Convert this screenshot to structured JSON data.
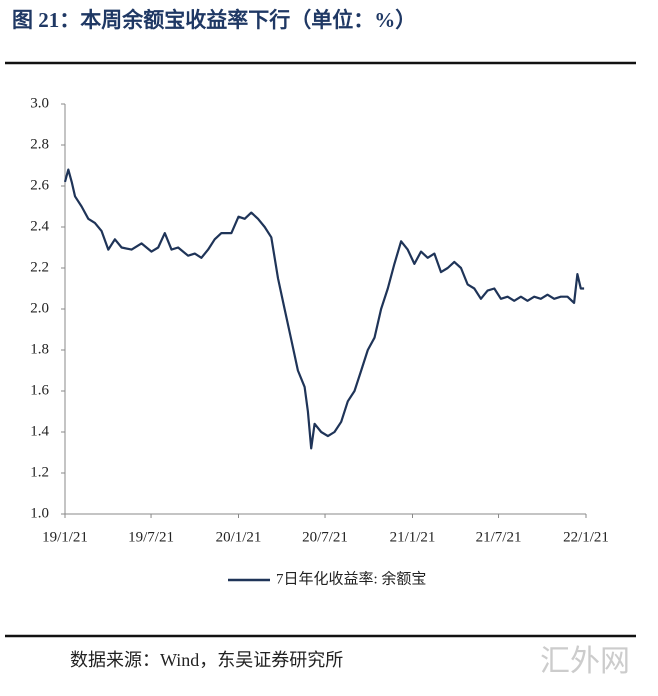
{
  "chart_data": {
    "type": "line",
    "title": "图 21：本周余额宝收益率下行（单位：%）",
    "source": "数据来源：Wind，东吴证券研究所",
    "watermark": "汇外网",
    "x": [
      "2019-01-21",
      "2019-01-28",
      "2019-02-04",
      "2019-02-11",
      "2019-02-25",
      "2019-03-11",
      "2019-03-25",
      "2019-04-08",
      "2019-04-22",
      "2019-05-06",
      "2019-05-20",
      "2019-06-10",
      "2019-07-01",
      "2019-07-22",
      "2019-08-05",
      "2019-08-19",
      "2019-09-02",
      "2019-09-16",
      "2019-10-07",
      "2019-10-21",
      "2019-11-04",
      "2019-11-18",
      "2019-12-02",
      "2019-12-16",
      "2020-01-06",
      "2020-01-21",
      "2020-02-03",
      "2020-02-17",
      "2020-03-02",
      "2020-03-16",
      "2020-03-30",
      "2020-04-13",
      "2020-04-27",
      "2020-05-11",
      "2020-05-25",
      "2020-06-08",
      "2020-06-15",
      "2020-06-22",
      "2020-06-29",
      "2020-07-13",
      "2020-07-27",
      "2020-08-10",
      "2020-08-24",
      "2020-09-07",
      "2020-09-21",
      "2020-10-05",
      "2020-10-19",
      "2020-11-02",
      "2020-11-16",
      "2020-11-30",
      "2020-12-14",
      "2020-12-28",
      "2021-01-11",
      "2021-01-25",
      "2021-02-08",
      "2021-02-22",
      "2021-03-08",
      "2021-03-22",
      "2021-04-05",
      "2021-04-19",
      "2021-05-03",
      "2021-05-17",
      "2021-05-31",
      "2021-06-14",
      "2021-06-28",
      "2021-07-12",
      "2021-07-26",
      "2021-08-09",
      "2021-08-23",
      "2021-09-06",
      "2021-09-20",
      "2021-10-04",
      "2021-10-18",
      "2021-11-01",
      "2021-11-15",
      "2021-11-29",
      "2021-12-13",
      "2021-12-27",
      "2022-01-03",
      "2022-01-10",
      "2022-01-17"
    ],
    "series": [
      {
        "name": "7日年化收益率: 余额宝",
        "color": "#1f3458",
        "values": [
          2.62,
          2.68,
          2.62,
          2.55,
          2.5,
          2.44,
          2.42,
          2.38,
          2.29,
          2.34,
          2.3,
          2.29,
          2.32,
          2.28,
          2.3,
          2.37,
          2.29,
          2.3,
          2.26,
          2.27,
          2.25,
          2.29,
          2.34,
          2.37,
          2.37,
          2.45,
          2.44,
          2.47,
          2.44,
          2.4,
          2.35,
          2.15,
          2.0,
          1.85,
          1.7,
          1.62,
          1.5,
          1.32,
          1.44,
          1.4,
          1.38,
          1.4,
          1.45,
          1.55,
          1.6,
          1.7,
          1.8,
          1.86,
          2.0,
          2.1,
          2.22,
          2.33,
          2.29,
          2.22,
          2.28,
          2.25,
          2.27,
          2.18,
          2.2,
          2.23,
          2.2,
          2.12,
          2.1,
          2.05,
          2.09,
          2.1,
          2.05,
          2.06,
          2.04,
          2.06,
          2.04,
          2.06,
          2.05,
          2.07,
          2.05,
          2.06,
          2.06,
          2.03,
          2.17,
          2.1,
          2.1
        ]
      }
    ],
    "xlim": [
      "2019-01-21",
      "2022-01-21"
    ],
    "xticks": [
      {
        "value": "2019-01-21",
        "label": "19/1/21"
      },
      {
        "value": "2019-07-21",
        "label": "19/7/21"
      },
      {
        "value": "2020-01-21",
        "label": "20/1/21"
      },
      {
        "value": "2020-07-21",
        "label": "20/7/21"
      },
      {
        "value": "2021-01-21",
        "label": "21/1/21"
      },
      {
        "value": "2021-07-21",
        "label": "21/7/21"
      },
      {
        "value": "2022-01-21",
        "label": "22/1/21"
      }
    ],
    "ylim": [
      1,
      3
    ],
    "yticks": [
      {
        "value": 1,
        "label": "1.0"
      },
      1.2,
      1.4,
      1.6,
      1.8,
      {
        "value": 2,
        "label": "2.0"
      },
      2.2,
      2.4,
      2.6,
      2.8,
      {
        "value": 3,
        "label": "3.0"
      }
    ]
  }
}
